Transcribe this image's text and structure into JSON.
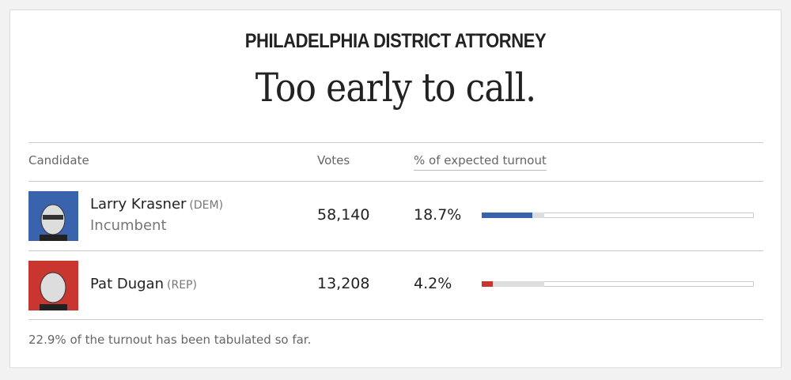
{
  "header": {
    "title": "PHILADELPHIA DISTRICT ATTORNEY",
    "headline": "Too early to call."
  },
  "table": {
    "columns": [
      "Candidate",
      "Votes",
      "% of expected turnout"
    ],
    "rows": [
      {
        "name": "Larry Krasner",
        "party": "(DEM)",
        "note": "Incumbent",
        "votes": "58,140",
        "turnout": {
          "value": 18.7,
          "label": "18.7%"
        },
        "color": "#3a63ad"
      },
      {
        "name": "Pat Dugan",
        "party": "(REP)",
        "votes": "13,208",
        "turnout": {
          "value": 4.2,
          "label": "4.2%"
        },
        "color": "#c9352f"
      }
    ]
  },
  "footer": {
    "tabulated": {
      "value": 22.9,
      "label": "22.9%"
    },
    "text": "of the turnout has been tabulated so far."
  }
}
